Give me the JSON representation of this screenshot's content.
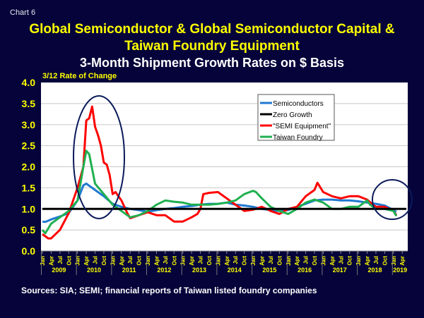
{
  "header": {
    "chart_label": "Chart 6",
    "title_line1": "Global Semiconductor & Global Semiconductor Capital &",
    "title_line2": "Taiwan Foundry Equipment",
    "subtitle": "3-Month Shipment Growth Rates on $ Basis"
  },
  "footer": {
    "sources": "Sources: SIA; SEMI; financial reports of Taiwan listed foundry companies"
  },
  "colors": {
    "background": "#05033a",
    "title": "#ffff00",
    "semiconductors": "#1f78d1",
    "zero": "#000000",
    "semi_equipment": "#ff0000",
    "taiwan_foundry": "#1fb050"
  },
  "chart_data": {
    "type": "line",
    "title": "Global Semiconductor & Global Semiconductor Capital & Taiwan Foundry Equipment",
    "subtitle": "3-Month Shipment Growth Rates on $ Basis",
    "ylabel": "3/12 Rate of Change",
    "xlabel": "",
    "ylim": [
      0,
      4.0
    ],
    "yticks": [
      "0.0",
      "0.5",
      "1.0",
      "1.5",
      "2.0",
      "2.5",
      "3.0",
      "3.5",
      "4.0"
    ],
    "x_unit": "months since Jan 2009",
    "xlim": [
      0,
      124
    ],
    "month_ticks": [
      "Jan",
      "Apr",
      "Jul",
      "Oct"
    ],
    "years": [
      "2009",
      "2010",
      "2011",
      "2012",
      "2013",
      "2014",
      "2015",
      "2016",
      "2017",
      "2018",
      "2019"
    ],
    "grid": true,
    "legend_position": "top-right",
    "series": [
      {
        "name": "Semiconductors",
        "color": "#1f78d1",
        "points": [
          [
            0,
            0.7
          ],
          [
            1,
            0.69
          ],
          [
            3,
            0.75
          ],
          [
            6,
            0.82
          ],
          [
            9,
            0.9
          ],
          [
            12,
            1.2
          ],
          [
            14,
            1.56
          ],
          [
            15,
            1.6
          ],
          [
            18,
            1.45
          ],
          [
            21,
            1.3
          ],
          [
            24,
            1.12
          ],
          [
            27,
            1.05
          ],
          [
            30,
            1.0
          ],
          [
            33,
            0.97
          ],
          [
            36,
            0.93
          ],
          [
            39,
            0.97
          ],
          [
            42,
            1.0
          ],
          [
            45,
            1.02
          ],
          [
            48,
            1.05
          ],
          [
            51,
            1.07
          ],
          [
            54,
            1.1
          ],
          [
            57,
            1.12
          ],
          [
            60,
            1.12
          ],
          [
            63,
            1.15
          ],
          [
            66,
            1.1
          ],
          [
            69,
            1.08
          ],
          [
            72,
            1.05
          ],
          [
            75,
            1.0
          ],
          [
            78,
            0.97
          ],
          [
            81,
            0.95
          ],
          [
            84,
            0.97
          ],
          [
            87,
            1.05
          ],
          [
            90,
            1.12
          ],
          [
            93,
            1.2
          ],
          [
            96,
            1.22
          ],
          [
            99,
            1.22
          ],
          [
            102,
            1.2
          ],
          [
            105,
            1.2
          ],
          [
            108,
            1.18
          ],
          [
            111,
            1.15
          ],
          [
            114,
            1.12
          ],
          [
            117,
            1.08
          ],
          [
            120,
            0.97
          ],
          [
            121,
            0.93
          ]
        ]
      },
      {
        "name": "Zero Growth",
        "color": "#000000",
        "points": [
          [
            0,
            1.0
          ],
          [
            121,
            1.0
          ]
        ]
      },
      {
        "name": "\"SEMI Equipment\"",
        "color": "#ff0000",
        "points": [
          [
            0,
            0.4
          ],
          [
            2,
            0.3
          ],
          [
            3,
            0.3
          ],
          [
            6,
            0.5
          ],
          [
            9,
            0.9
          ],
          [
            12,
            1.5
          ],
          [
            14,
            2.0
          ],
          [
            15,
            3.1
          ],
          [
            16,
            3.15
          ],
          [
            17,
            3.43
          ],
          [
            18,
            2.95
          ],
          [
            19,
            2.75
          ],
          [
            20,
            2.5
          ],
          [
            21,
            2.1
          ],
          [
            22,
            2.05
          ],
          [
            23,
            1.8
          ],
          [
            24,
            1.35
          ],
          [
            25,
            1.4
          ],
          [
            27,
            1.2
          ],
          [
            29,
            0.9
          ],
          [
            30,
            0.78
          ],
          [
            33,
            0.85
          ],
          [
            36,
            0.92
          ],
          [
            39,
            0.85
          ],
          [
            42,
            0.85
          ],
          [
            45,
            0.7
          ],
          [
            48,
            0.7
          ],
          [
            51,
            0.8
          ],
          [
            53,
            0.88
          ],
          [
            54,
            1.0
          ],
          [
            55,
            1.35
          ],
          [
            57,
            1.38
          ],
          [
            60,
            1.4
          ],
          [
            63,
            1.25
          ],
          [
            66,
            1.1
          ],
          [
            69,
            0.95
          ],
          [
            72,
            0.98
          ],
          [
            75,
            1.05
          ],
          [
            78,
            0.95
          ],
          [
            81,
            0.88
          ],
          [
            84,
            1.0
          ],
          [
            87,
            1.05
          ],
          [
            90,
            1.3
          ],
          [
            93,
            1.45
          ],
          [
            94,
            1.62
          ],
          [
            96,
            1.4
          ],
          [
            99,
            1.3
          ],
          [
            102,
            1.25
          ],
          [
            105,
            1.3
          ],
          [
            108,
            1.3
          ],
          [
            111,
            1.22
          ],
          [
            113,
            1.1
          ],
          [
            114,
            1.05
          ],
          [
            117,
            1.05
          ],
          [
            120,
            0.95
          ],
          [
            121,
            0.85
          ]
        ]
      },
      {
        "name": "Taiwan Foundry",
        "color": "#1fb050",
        "points": [
          [
            0,
            0.5
          ],
          [
            1,
            0.42
          ],
          [
            3,
            0.65
          ],
          [
            6,
            0.8
          ],
          [
            9,
            0.95
          ],
          [
            12,
            1.2
          ],
          [
            14,
            2.0
          ],
          [
            15,
            2.38
          ],
          [
            16,
            2.3
          ],
          [
            18,
            1.6
          ],
          [
            21,
            1.35
          ],
          [
            24,
            1.1
          ],
          [
            27,
            0.95
          ],
          [
            30,
            0.8
          ],
          [
            33,
            0.85
          ],
          [
            36,
            0.95
          ],
          [
            39,
            1.1
          ],
          [
            42,
            1.2
          ],
          [
            45,
            1.17
          ],
          [
            48,
            1.15
          ],
          [
            51,
            1.1
          ],
          [
            54,
            1.1
          ],
          [
            57,
            1.1
          ],
          [
            60,
            1.12
          ],
          [
            63,
            1.15
          ],
          [
            66,
            1.2
          ],
          [
            69,
            1.35
          ],
          [
            72,
            1.43
          ],
          [
            73,
            1.4
          ],
          [
            75,
            1.25
          ],
          [
            78,
            1.05
          ],
          [
            81,
            0.95
          ],
          [
            84,
            0.88
          ],
          [
            87,
            1.0
          ],
          [
            90,
            1.15
          ],
          [
            93,
            1.22
          ],
          [
            96,
            1.15
          ],
          [
            99,
            1.0
          ],
          [
            102,
            1.0
          ],
          [
            105,
            1.05
          ],
          [
            108,
            1.05
          ],
          [
            111,
            1.2
          ],
          [
            112,
            1.1
          ],
          [
            114,
            1.0
          ],
          [
            117,
            1.0
          ],
          [
            120,
            0.95
          ],
          [
            121,
            0.83
          ]
        ]
      }
    ]
  }
}
